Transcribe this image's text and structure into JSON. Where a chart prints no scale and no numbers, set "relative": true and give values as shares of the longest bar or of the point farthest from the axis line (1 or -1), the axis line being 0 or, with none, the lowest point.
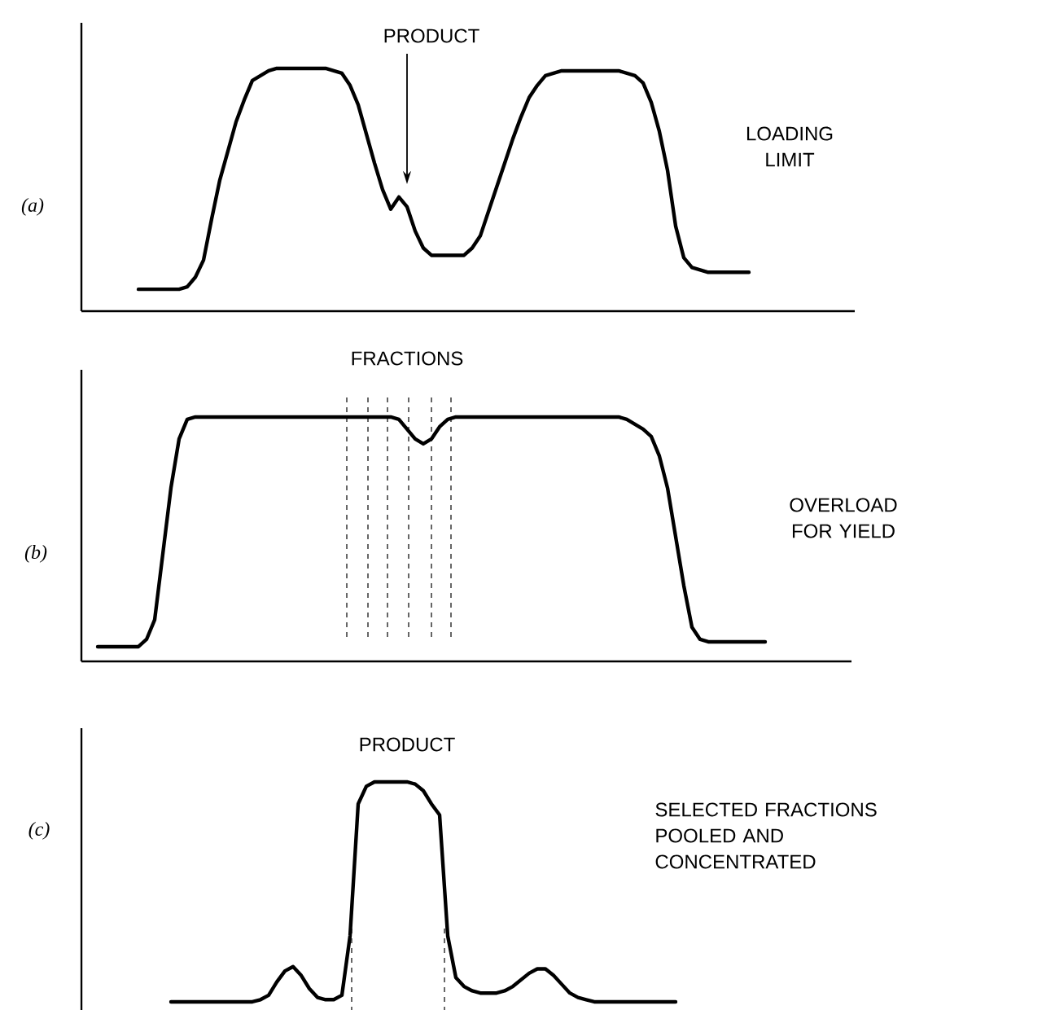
{
  "chart_data": [
    {
      "type": "line",
      "ylabel": "(a)",
      "annotations": [
        "PRODUCT",
        "LOADING LIMIT"
      ],
      "relative": true,
      "categories": [
        null,
        null,
        null,
        null,
        null,
        null,
        null,
        null,
        null,
        null,
        null,
        null,
        null,
        null,
        null,
        null,
        null,
        null,
        null,
        null,
        null,
        null,
        null,
        null,
        null,
        null,
        null,
        null,
        null,
        null,
        null,
        null,
        null,
        null,
        null,
        null,
        null,
        null,
        null,
        null,
        null,
        null,
        null,
        null,
        null,
        null,
        null,
        null,
        null,
        null,
        null,
        null,
        null,
        null,
        null,
        null,
        null,
        null,
        null,
        null,
        null,
        null,
        null,
        null,
        null,
        null,
        null,
        null,
        null,
        null,
        null,
        null,
        null,
        null,
        null,
        null
      ],
      "series": [
        {
          "color": "#000000",
          "values": [
            0.09,
            0.09,
            0.09,
            0.09,
            0.09,
            0.09,
            0.1,
            0.14,
            0.21,
            0.38,
            0.54,
            0.66,
            0.78,
            0.87,
            0.95,
            0.97,
            0.99,
            1,
            1,
            1,
            1,
            1,
            1,
            1,
            0.99,
            0.98,
            0.93,
            0.85,
            0.73,
            0.61,
            0.5,
            0.42,
            0.47,
            0.43,
            0.33,
            0.26,
            0.23,
            0.23,
            0.23,
            0.23,
            0.23,
            0.26,
            0.31,
            0.41,
            0.51,
            0.61,
            0.71,
            0.8,
            0.88,
            0.93,
            0.97,
            0.98,
            0.99,
            0.99,
            0.99,
            0.99,
            0.99,
            0.99,
            0.99,
            0.99,
            0.98,
            0.97,
            0.94,
            0.86,
            0.74,
            0.58,
            0.35,
            0.22,
            0.18,
            0.17,
            0.16,
            0.16,
            0.16,
            0.16,
            0.16,
            0.16
          ]
        }
      ]
    },
    {
      "type": "line",
      "ylabel": "(b)",
      "annotations": [
        "FRACTIONS",
        "OVERLOAD FOR YIELD"
      ],
      "relative": true,
      "categories": [
        null,
        null,
        null,
        null,
        null,
        null,
        null,
        null,
        null,
        null,
        null,
        null,
        null,
        null,
        null,
        null,
        null,
        null,
        null,
        null,
        null,
        null,
        null,
        null,
        null,
        null,
        null,
        null,
        null,
        null,
        null,
        null,
        null,
        null,
        null,
        null,
        null,
        null,
        null,
        null,
        null,
        null,
        null,
        null,
        null,
        null,
        null,
        null,
        null,
        null,
        null,
        null,
        null,
        null,
        null,
        null,
        null,
        null,
        null,
        null,
        null,
        null,
        null,
        null,
        null,
        null,
        null,
        null,
        null,
        null,
        null,
        null,
        null,
        null,
        null,
        null,
        null,
        null,
        null,
        null,
        null,
        null,
        null
      ],
      "series": [
        {
          "color": "#000000",
          "values": [
            0.06,
            0.06,
            0.06,
            0.06,
            0.06,
            0.06,
            0.09,
            0.17,
            0.44,
            0.71,
            0.91,
            0.99,
            1,
            1,
            1,
            1,
            1,
            1,
            1,
            1,
            1,
            1,
            1,
            1,
            1,
            1,
            1,
            1,
            1,
            1,
            1,
            1,
            1,
            1,
            1,
            1,
            1,
            0.99,
            0.95,
            0.91,
            0.89,
            0.91,
            0.96,
            0.99,
            1,
            1,
            1,
            1,
            1,
            1,
            1,
            1,
            1,
            1,
            1,
            1,
            1,
            1,
            1,
            1,
            1,
            1,
            1,
            1,
            1,
            0.99,
            0.97,
            0.95,
            0.92,
            0.84,
            0.71,
            0.51,
            0.31,
            0.14,
            0.09,
            0.08,
            0.08,
            0.08,
            0.08,
            0.08,
            0.08,
            0.08,
            0.08
          ]
        }
      ]
    },
    {
      "type": "line",
      "ylabel": "(c)",
      "annotations": [
        "PRODUCT",
        "SELECTED FRACTIONS POOLED AND CONCENTRATED"
      ],
      "relative": true,
      "categories": [
        null,
        null,
        null,
        null,
        null,
        null,
        null,
        null,
        null,
        null,
        null,
        null,
        null,
        null,
        null,
        null,
        null,
        null,
        null,
        null,
        null,
        null,
        null,
        null,
        null,
        null,
        null,
        null,
        null,
        null,
        null,
        null,
        null,
        null,
        null,
        null,
        null,
        null,
        null,
        null,
        null,
        null,
        null,
        null,
        null,
        null,
        null,
        null,
        null,
        null,
        null,
        null,
        null,
        null,
        null,
        null,
        null,
        null,
        null,
        null,
        null,
        null,
        null
      ],
      "series": [
        {
          "color": "#000000",
          "values": [
            0,
            0,
            0,
            0,
            0,
            0,
            0,
            0,
            0,
            0,
            0,
            0.01,
            0.03,
            0.09,
            0.14,
            0.16,
            0.12,
            0.06,
            0.02,
            0.01,
            0.01,
            0.03,
            0.3,
            0.9,
            0.98,
            1,
            1,
            1,
            1,
            1,
            0.99,
            0.96,
            0.9,
            0.85,
            0.3,
            0.11,
            0.07,
            0.05,
            0.04,
            0.04,
            0.04,
            0.05,
            0.07,
            0.1,
            0.13,
            0.15,
            0.15,
            0.12,
            0.08,
            0.04,
            0.02,
            0.01,
            0,
            0,
            0,
            0,
            0,
            0,
            0,
            0,
            0,
            0,
            0
          ]
        }
      ]
    }
  ]
}
